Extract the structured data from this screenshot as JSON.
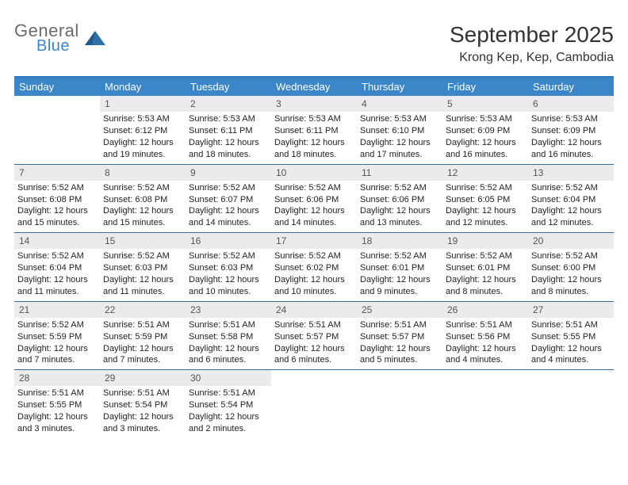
{
  "logo": {
    "top": "General",
    "bottom": "Blue",
    "shape_color": "#2f6fa8"
  },
  "title": "September 2025",
  "location": "Krong Kep, Kep, Cambodia",
  "colors": {
    "header_bar": "#3a86c8",
    "header_border": "#2f78b5",
    "row_border": "#3a6e9a",
    "daynum_bg": "#ebebeb",
    "text": "#222222",
    "logo_gray": "#6b6b6b",
    "logo_blue": "#3a86c8"
  },
  "weekdays": [
    "Sunday",
    "Monday",
    "Tuesday",
    "Wednesday",
    "Thursday",
    "Friday",
    "Saturday"
  ],
  "weeks": [
    [
      {
        "n": "",
        "sr": "",
        "ss": "",
        "dl": ""
      },
      {
        "n": "1",
        "sr": "Sunrise: 5:53 AM",
        "ss": "Sunset: 6:12 PM",
        "dl": "Daylight: 12 hours and 19 minutes."
      },
      {
        "n": "2",
        "sr": "Sunrise: 5:53 AM",
        "ss": "Sunset: 6:11 PM",
        "dl": "Daylight: 12 hours and 18 minutes."
      },
      {
        "n": "3",
        "sr": "Sunrise: 5:53 AM",
        "ss": "Sunset: 6:11 PM",
        "dl": "Daylight: 12 hours and 18 minutes."
      },
      {
        "n": "4",
        "sr": "Sunrise: 5:53 AM",
        "ss": "Sunset: 6:10 PM",
        "dl": "Daylight: 12 hours and 17 minutes."
      },
      {
        "n": "5",
        "sr": "Sunrise: 5:53 AM",
        "ss": "Sunset: 6:09 PM",
        "dl": "Daylight: 12 hours and 16 minutes."
      },
      {
        "n": "6",
        "sr": "Sunrise: 5:53 AM",
        "ss": "Sunset: 6:09 PM",
        "dl": "Daylight: 12 hours and 16 minutes."
      }
    ],
    [
      {
        "n": "7",
        "sr": "Sunrise: 5:52 AM",
        "ss": "Sunset: 6:08 PM",
        "dl": "Daylight: 12 hours and 15 minutes."
      },
      {
        "n": "8",
        "sr": "Sunrise: 5:52 AM",
        "ss": "Sunset: 6:08 PM",
        "dl": "Daylight: 12 hours and 15 minutes."
      },
      {
        "n": "9",
        "sr": "Sunrise: 5:52 AM",
        "ss": "Sunset: 6:07 PM",
        "dl": "Daylight: 12 hours and 14 minutes."
      },
      {
        "n": "10",
        "sr": "Sunrise: 5:52 AM",
        "ss": "Sunset: 6:06 PM",
        "dl": "Daylight: 12 hours and 14 minutes."
      },
      {
        "n": "11",
        "sr": "Sunrise: 5:52 AM",
        "ss": "Sunset: 6:06 PM",
        "dl": "Daylight: 12 hours and 13 minutes."
      },
      {
        "n": "12",
        "sr": "Sunrise: 5:52 AM",
        "ss": "Sunset: 6:05 PM",
        "dl": "Daylight: 12 hours and 12 minutes."
      },
      {
        "n": "13",
        "sr": "Sunrise: 5:52 AM",
        "ss": "Sunset: 6:04 PM",
        "dl": "Daylight: 12 hours and 12 minutes."
      }
    ],
    [
      {
        "n": "14",
        "sr": "Sunrise: 5:52 AM",
        "ss": "Sunset: 6:04 PM",
        "dl": "Daylight: 12 hours and 11 minutes."
      },
      {
        "n": "15",
        "sr": "Sunrise: 5:52 AM",
        "ss": "Sunset: 6:03 PM",
        "dl": "Daylight: 12 hours and 11 minutes."
      },
      {
        "n": "16",
        "sr": "Sunrise: 5:52 AM",
        "ss": "Sunset: 6:03 PM",
        "dl": "Daylight: 12 hours and 10 minutes."
      },
      {
        "n": "17",
        "sr": "Sunrise: 5:52 AM",
        "ss": "Sunset: 6:02 PM",
        "dl": "Daylight: 12 hours and 10 minutes."
      },
      {
        "n": "18",
        "sr": "Sunrise: 5:52 AM",
        "ss": "Sunset: 6:01 PM",
        "dl": "Daylight: 12 hours and 9 minutes."
      },
      {
        "n": "19",
        "sr": "Sunrise: 5:52 AM",
        "ss": "Sunset: 6:01 PM",
        "dl": "Daylight: 12 hours and 8 minutes."
      },
      {
        "n": "20",
        "sr": "Sunrise: 5:52 AM",
        "ss": "Sunset: 6:00 PM",
        "dl": "Daylight: 12 hours and 8 minutes."
      }
    ],
    [
      {
        "n": "21",
        "sr": "Sunrise: 5:52 AM",
        "ss": "Sunset: 5:59 PM",
        "dl": "Daylight: 12 hours and 7 minutes."
      },
      {
        "n": "22",
        "sr": "Sunrise: 5:51 AM",
        "ss": "Sunset: 5:59 PM",
        "dl": "Daylight: 12 hours and 7 minutes."
      },
      {
        "n": "23",
        "sr": "Sunrise: 5:51 AM",
        "ss": "Sunset: 5:58 PM",
        "dl": "Daylight: 12 hours and 6 minutes."
      },
      {
        "n": "24",
        "sr": "Sunrise: 5:51 AM",
        "ss": "Sunset: 5:57 PM",
        "dl": "Daylight: 12 hours and 6 minutes."
      },
      {
        "n": "25",
        "sr": "Sunrise: 5:51 AM",
        "ss": "Sunset: 5:57 PM",
        "dl": "Daylight: 12 hours and 5 minutes."
      },
      {
        "n": "26",
        "sr": "Sunrise: 5:51 AM",
        "ss": "Sunset: 5:56 PM",
        "dl": "Daylight: 12 hours and 4 minutes."
      },
      {
        "n": "27",
        "sr": "Sunrise: 5:51 AM",
        "ss": "Sunset: 5:55 PM",
        "dl": "Daylight: 12 hours and 4 minutes."
      }
    ],
    [
      {
        "n": "28",
        "sr": "Sunrise: 5:51 AM",
        "ss": "Sunset: 5:55 PM",
        "dl": "Daylight: 12 hours and 3 minutes."
      },
      {
        "n": "29",
        "sr": "Sunrise: 5:51 AM",
        "ss": "Sunset: 5:54 PM",
        "dl": "Daylight: 12 hours and 3 minutes."
      },
      {
        "n": "30",
        "sr": "Sunrise: 5:51 AM",
        "ss": "Sunset: 5:54 PM",
        "dl": "Daylight: 12 hours and 2 minutes."
      },
      {
        "n": "",
        "sr": "",
        "ss": "",
        "dl": ""
      },
      {
        "n": "",
        "sr": "",
        "ss": "",
        "dl": ""
      },
      {
        "n": "",
        "sr": "",
        "ss": "",
        "dl": ""
      },
      {
        "n": "",
        "sr": "",
        "ss": "",
        "dl": ""
      }
    ]
  ]
}
